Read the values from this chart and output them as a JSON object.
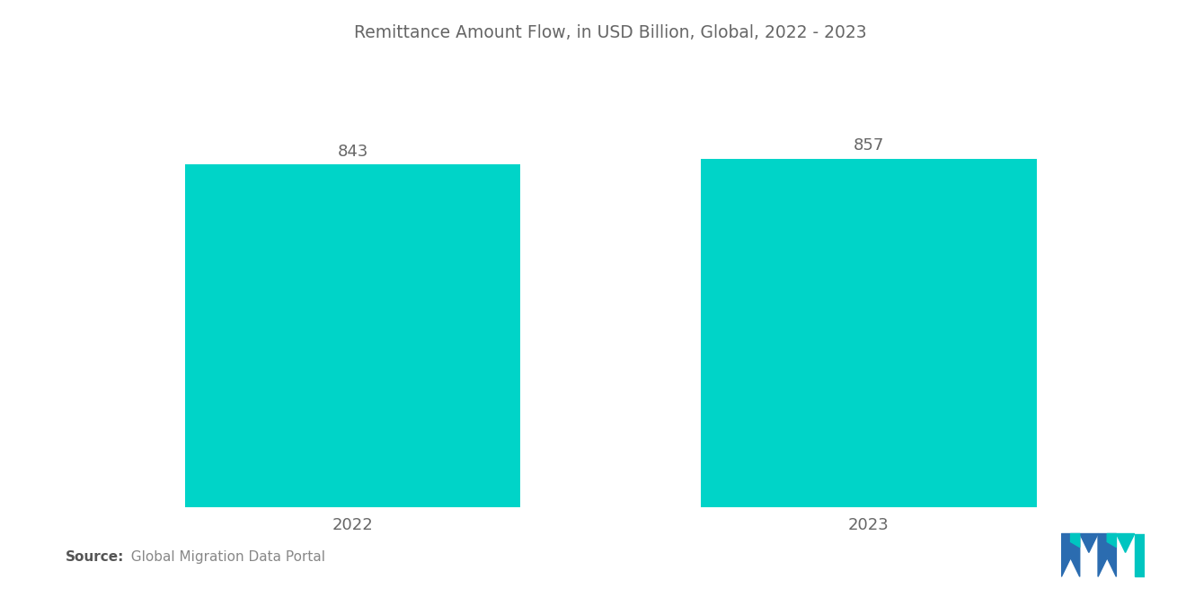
{
  "title": "Remittance Amount Flow, in USD Billion, Global, 2022 - 2023",
  "categories": [
    "2022",
    "2023"
  ],
  "values": [
    843,
    857
  ],
  "bar_color": "#00D4C8",
  "background_color": "#ffffff",
  "title_color": "#666666",
  "label_color": "#666666",
  "value_label_color": "#666666",
  "title_fontsize": 13.5,
  "label_fontsize": 13,
  "value_fontsize": 13,
  "source_bold_text": "Source:",
  "source_normal_text": "  Global Migration Data Portal",
  "source_fontsize": 11,
  "bar_width": 0.65,
  "xlim": [
    -0.5,
    1.5
  ],
  "ylim": [
    0,
    1100
  ],
  "logo_blue": "#2B6CB0",
  "logo_teal": "#00C5C0"
}
